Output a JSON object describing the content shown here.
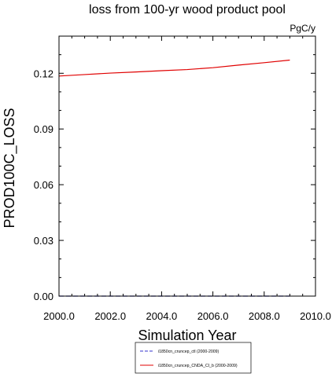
{
  "chart_data": {
    "type": "line",
    "title": "loss from 100-yr wood product pool",
    "units": "PgC/y",
    "xlabel": "Simulation Year",
    "ylabel": "PROD100C_LOSS",
    "xlim": [
      2000.0,
      2010.0
    ],
    "ylim": [
      0.0,
      0.14
    ],
    "x_ticks": [
      2000.0,
      2002.0,
      2004.0,
      2006.0,
      2008.0,
      2010.0
    ],
    "x_tick_labels": [
      "2000.0",
      "2002.0",
      "2004.0",
      "2006.0",
      "2008.0",
      "2010.0"
    ],
    "y_ticks": [
      0.0,
      0.03,
      0.06,
      0.09,
      0.12
    ],
    "y_tick_labels": [
      "0.00",
      "0.03",
      "0.06",
      "0.09",
      "0.12"
    ],
    "grid": false,
    "legend_position": "bottom-center",
    "series": [
      {
        "name": "i1850cn_cruncep_ctl (2000-2009)",
        "color": "#3333cc",
        "dashed": true,
        "x": [
          2000,
          2001,
          2002,
          2003,
          2004,
          2005,
          2006,
          2007,
          2008,
          2009
        ],
        "values": [
          0.0,
          0.0,
          0.0,
          0.0,
          0.0,
          0.0,
          0.0,
          0.0,
          0.0,
          0.0
        ]
      },
      {
        "name": "i1850cn_cruncep_CNDA_CI_b (2000-2009)",
        "color": "#e00000",
        "dashed": false,
        "x": [
          2000,
          2001,
          2002,
          2003,
          2004,
          2005,
          2006,
          2007,
          2008,
          2009
        ],
        "values": [
          0.1185,
          0.1193,
          0.1201,
          0.1207,
          0.1214,
          0.122,
          0.123,
          0.1244,
          0.1257,
          0.1271
        ]
      }
    ]
  }
}
